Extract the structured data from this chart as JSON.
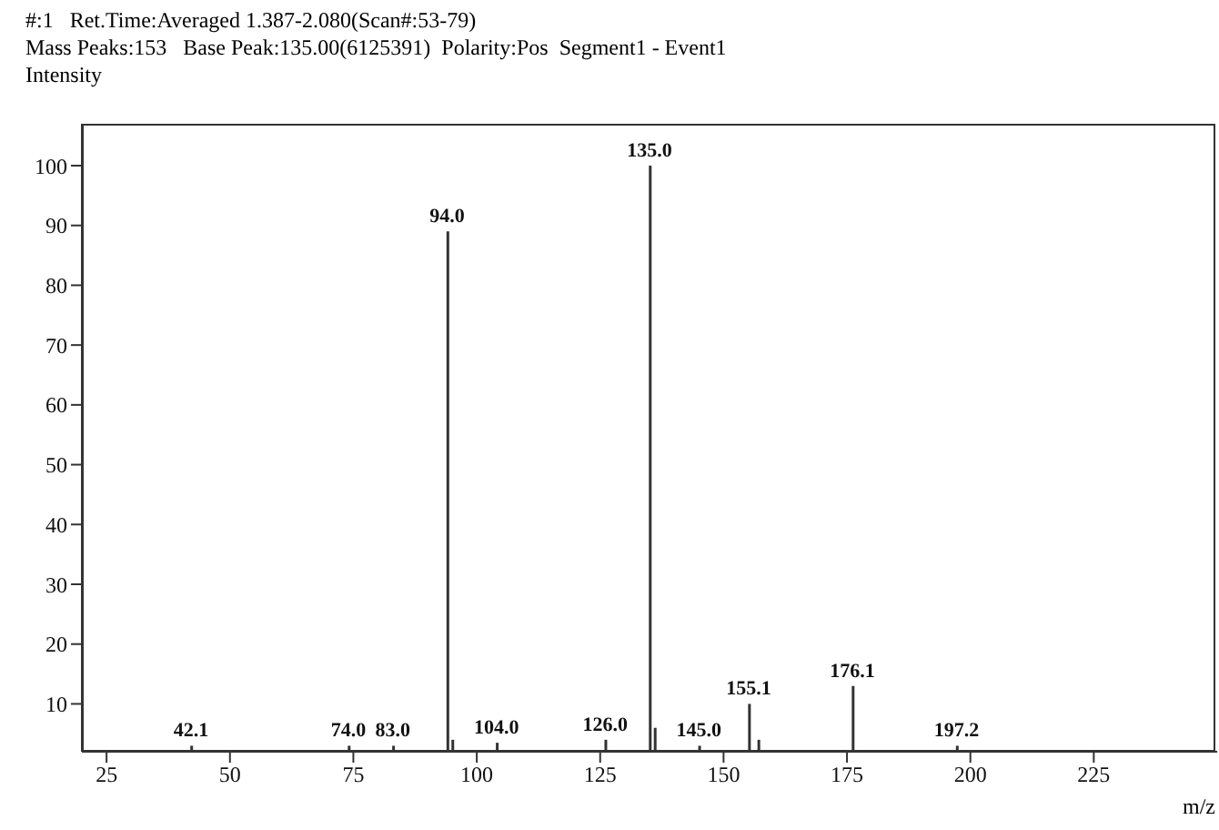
{
  "chart_data": {
    "type": "bar",
    "title": "#:1   Ret.Time:Averaged 1.387-2.080(Scan#:53-79)",
    "subtitle": "Mass Peaks:153   Base Peak:135.00(6125391)  Polarity:Pos  Segment1 - Event1",
    "ylabel": "Intensity",
    "xlabel": "m/z",
    "x": [
      42.1,
      74.0,
      83.0,
      94.0,
      95.0,
      104.0,
      126.0,
      135.0,
      136.0,
      145.0,
      155.1,
      157.0,
      176.1,
      197.2
    ],
    "values": [
      3,
      3,
      3,
      89,
      4,
      3.5,
      4,
      100,
      6,
      3,
      10,
      4,
      13,
      3
    ],
    "annotations": [
      {
        "text": "42.1",
        "x": 42.1,
        "y": 3
      },
      {
        "text": "74.0",
        "x": 74.0,
        "y": 3
      },
      {
        "text": "83.0",
        "x": 83.0,
        "y": 3
      },
      {
        "text": "94.0",
        "x": 94.0,
        "y": 89
      },
      {
        "text": "104.0",
        "x": 104.0,
        "y": 3.5
      },
      {
        "text": "126.0",
        "x": 126.0,
        "y": 4
      },
      {
        "text": "135.0",
        "x": 135.0,
        "y": 100
      },
      {
        "text": "145.0",
        "x": 145.0,
        "y": 3
      },
      {
        "text": "155.1",
        "x": 155.1,
        "y": 10
      },
      {
        "text": "176.1",
        "x": 176.1,
        "y": 13
      },
      {
        "text": "197.2",
        "x": 197.2,
        "y": 3
      }
    ],
    "color": "#333333",
    "xlim": [
      20,
      250
    ],
    "xticks": [
      25,
      50,
      75,
      100,
      125,
      150,
      175,
      200,
      225
    ],
    "ylim": [
      2,
      107
    ],
    "yticks": [
      10,
      20,
      30,
      40,
      50,
      60,
      70,
      80,
      90,
      100
    ],
    "grid": false
  }
}
